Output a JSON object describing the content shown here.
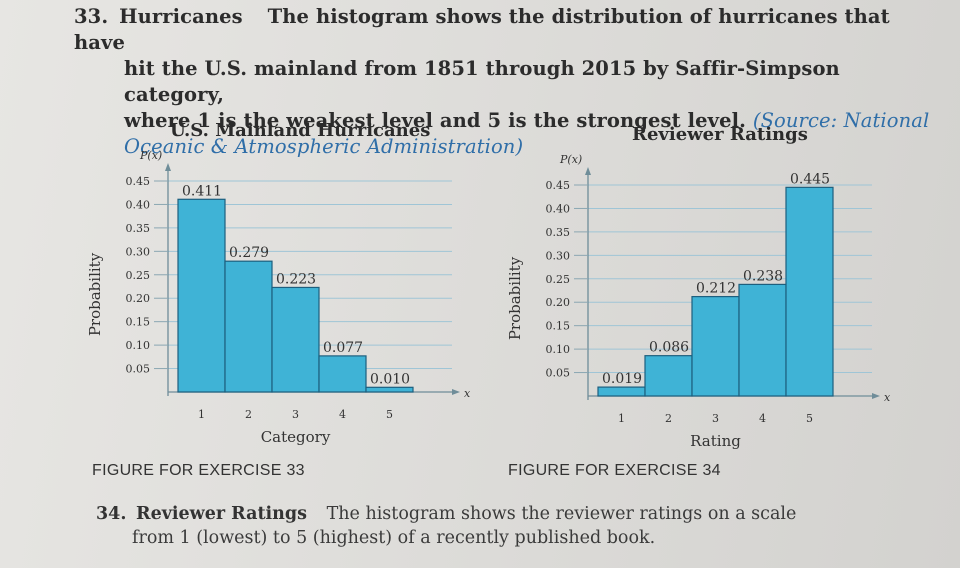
{
  "exercise_33": {
    "number": "33.",
    "title": "Hurricanes",
    "text_line1": "The histogram shows the distribution of hurricanes that have",
    "text_line2": "hit the U.S. mainland from 1851 through 2015 by Saffir-Simpson category,",
    "text_line3": "where 1 is the weakest level and 5 is the strongest level.",
    "source_line1": "(Source: National",
    "source_line2": "Oceanic & Atmospheric Administration)"
  },
  "figure_captions": {
    "left": "FIGURE FOR EXERCISE 33",
    "right": "FIGURE FOR EXERCISE 34"
  },
  "exercise_34": {
    "number": "34.",
    "title": "Reviewer Ratings",
    "text_line1": "The histogram shows the reviewer ratings on a scale",
    "text_line2": "from 1 (lowest) to 5 (highest) of a recently published book."
  },
  "colors": {
    "bar_fill": "#3fb3d6",
    "bar_stroke": "#1d5f7e",
    "grid": "#9fc5d6"
  },
  "chart_data": [
    {
      "type": "bar",
      "title": "U.S. Mainland Hurricanes",
      "ylabel": "Probability",
      "yaxis_symbol": "P(x)",
      "xlabel": "Category",
      "xaxis_symbol": "x",
      "categories": [
        "1",
        "2",
        "3",
        "4",
        "5"
      ],
      "values": [
        0.411,
        0.279,
        0.223,
        0.077,
        0.01
      ],
      "value_labels": [
        "0.411",
        "0.279",
        "0.223",
        "0.077",
        "0.010"
      ],
      "yticks": [
        "0.05",
        "0.10",
        "0.15",
        "0.20",
        "0.25",
        "0.30",
        "0.35",
        "0.40",
        "0.45"
      ],
      "ylim": [
        0,
        0.45
      ],
      "grid": true
    },
    {
      "type": "bar",
      "title": "Reviewer Ratings",
      "ylabel": "Probability",
      "yaxis_symbol": "P(x)",
      "xlabel": "Rating",
      "xaxis_symbol": "x",
      "categories": [
        "1",
        "2",
        "3",
        "4",
        "5"
      ],
      "values": [
        0.019,
        0.086,
        0.212,
        0.238,
        0.445
      ],
      "value_labels": [
        "0.019",
        "0.086",
        "0.212",
        "0.238",
        "0.445"
      ],
      "yticks": [
        "0.05",
        "0.10",
        "0.15",
        "0.20",
        "0.25",
        "0.30",
        "0.35",
        "0.40",
        "0.45"
      ],
      "ylim": [
        0,
        0.45
      ],
      "grid": true
    }
  ]
}
